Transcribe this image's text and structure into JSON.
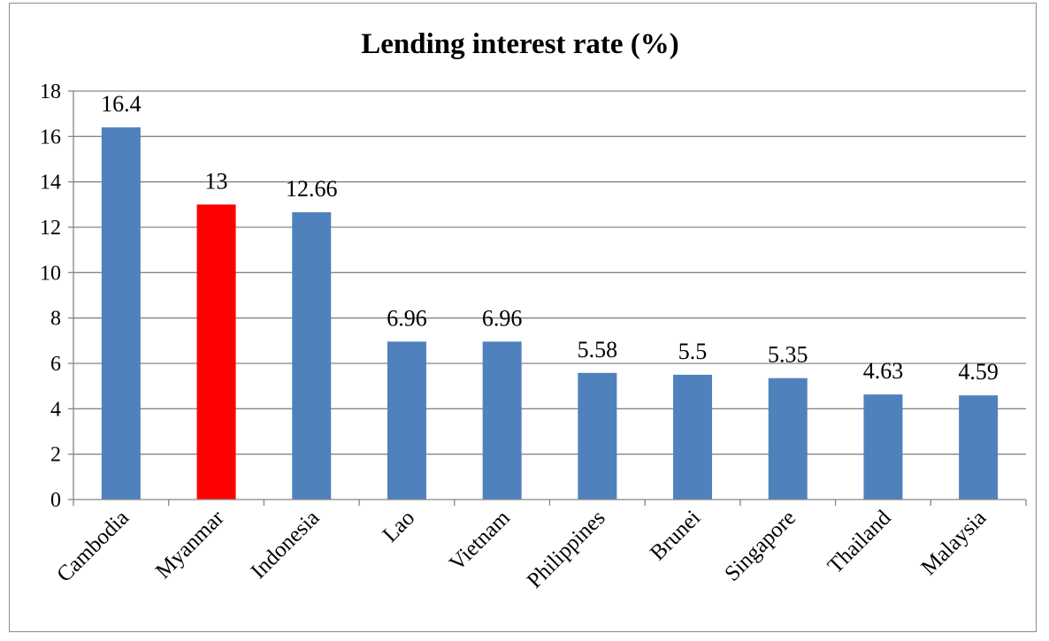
{
  "chart_data": {
    "type": "bar",
    "title": "Lending interest rate (%)",
    "categories": [
      "Cambodia",
      "Myanmar",
      "Indonesia",
      "Lao",
      "Vietnam",
      "Philippines",
      "Brunei",
      "Singapore",
      "Thailand",
      "Malaysia"
    ],
    "values": [
      16.4,
      13,
      12.66,
      6.96,
      6.96,
      5.58,
      5.5,
      5.35,
      4.63,
      4.59
    ],
    "data_labels": [
      "16.4",
      "13",
      "12.66",
      "6.96",
      "6.96",
      "5.58",
      "5.5",
      "5.35",
      "4.63",
      "4.59"
    ],
    "ylim": [
      0,
      18
    ],
    "yticks": [
      0,
      2,
      4,
      6,
      8,
      10,
      12,
      14,
      16,
      18
    ],
    "grid": true,
    "legend": "none",
    "colors": {
      "default_bar": "#4f81bd",
      "highlight_bar": "#ff0000",
      "highlight_category": "Myanmar"
    }
  }
}
